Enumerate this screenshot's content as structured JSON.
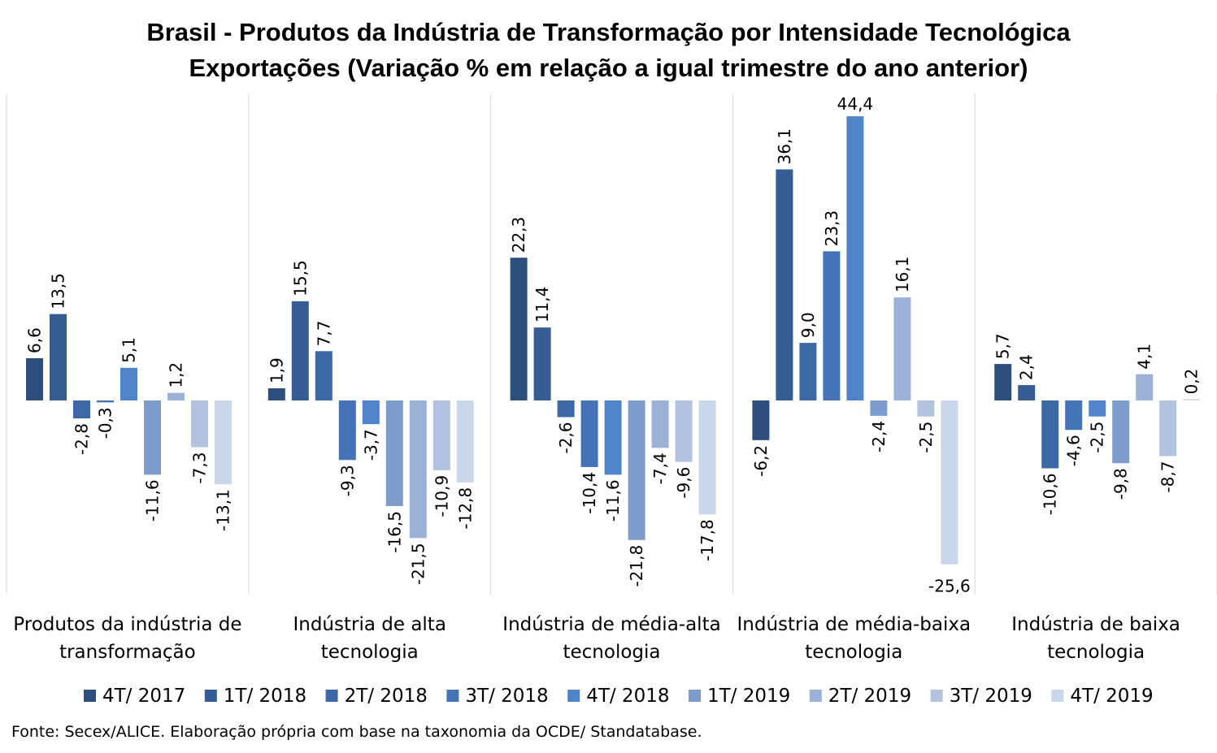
{
  "chart_data": {
    "type": "bar",
    "title": "Brasil - Produtos da Indústria de Transformação por Intensidade Tecnológica",
    "subtitle": "Exportações (Variação % em relação a igual trimestre do ano anterior)",
    "categories": [
      [
        "Produtos da indústria de",
        "transformação"
      ],
      [
        "Indústria de alta",
        "tecnologia"
      ],
      [
        "Indústria de média-alta",
        "tecnologia"
      ],
      [
        "Indústria de média-baixa",
        "tecnologia"
      ],
      [
        "Indústria de baixa",
        "tecnologia"
      ]
    ],
    "series": [
      {
        "name": "4T/ 2017",
        "color": "#2e4e7e",
        "values": [
          6.6,
          1.9,
          22.3,
          -6.2,
          5.7
        ]
      },
      {
        "name": "1T/ 2018",
        "color": "#355c93",
        "values": [
          13.5,
          15.5,
          11.4,
          36.1,
          2.4
        ]
      },
      {
        "name": "2T/ 2018",
        "color": "#3d68a6",
        "values": [
          -2.8,
          7.7,
          -2.6,
          9.0,
          -10.6
        ]
      },
      {
        "name": "3T/ 2018",
        "color": "#4474b7",
        "values": [
          -0.3,
          -9.3,
          -10.4,
          23.3,
          -4.6
        ]
      },
      {
        "name": "4T/ 2018",
        "color": "#4f84c8",
        "values": [
          5.1,
          -3.7,
          -11.6,
          44.4,
          -2.5
        ]
      },
      {
        "name": "1T/ 2019",
        "color": "#7e9ccb",
        "values": [
          -11.6,
          -16.5,
          -21.8,
          -2.4,
          -9.8
        ]
      },
      {
        "name": "2T/ 2019",
        "color": "#9cb1d6",
        "values": [
          1.2,
          -21.5,
          -7.4,
          16.1,
          4.1
        ]
      },
      {
        "name": "3T/ 2019",
        "color": "#b3c2df",
        "values": [
          -7.3,
          -10.9,
          -9.6,
          -2.5,
          -8.7
        ]
      },
      {
        "name": "4T/ 2019",
        "color": "#cad6ea",
        "values": [
          -13.1,
          -12.8,
          -17.8,
          -25.6,
          0.2
        ]
      }
    ],
    "value_labels": [
      [
        "6,6",
        "13,5",
        "-2,8",
        "-0,3",
        "5,1",
        "-11,6",
        "1,2",
        "-7,3",
        "-13,1"
      ],
      [
        "1,9",
        "15,5",
        "7,7",
        "-9,3",
        "-3,7",
        "-16,5",
        "-21,5",
        "-10,9",
        "-12,8"
      ],
      [
        "22,3",
        "11,4",
        "-2,6",
        "-10,4",
        "-11,6",
        "-21,8",
        "-7,4",
        "-9,6",
        "-17,8"
      ],
      [
        "-6,2",
        "36,1",
        "9,0",
        "23,3",
        "44,4",
        "-2,4",
        "16,1",
        "-2,5",
        "-25,6"
      ],
      [
        "5,7",
        "2,4",
        "-10,6",
        "-4,6",
        "-2,5",
        "-9,8",
        "4,1",
        "-8,7",
        "0,2"
      ]
    ],
    "xlabel": "",
    "ylabel": "",
    "grid": false,
    "legend_position": "bottom"
  },
  "source": "Fonte: Secex/ALICE. Elaboração própria com base na taxonomia da OCDE/ Standatabase."
}
